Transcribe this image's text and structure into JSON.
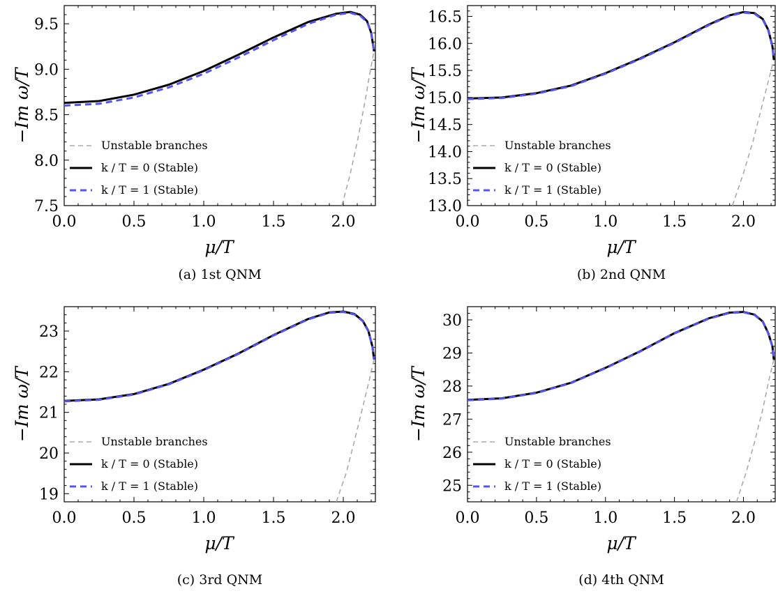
{
  "chart_data": [
    {
      "type": "line",
      "caption": "(a) 1st QNM",
      "xlabel": "μ/T",
      "ylabel": "−Im ω/T",
      "xlim": [
        0,
        2.23
      ],
      "ylim": [
        7.5,
        9.7
      ],
      "xticks": [
        0.0,
        0.5,
        1.0,
        1.5,
        2.0
      ],
      "xtick_labels": [
        "0.0",
        "0.5",
        "1.0",
        "1.5",
        "2.0"
      ],
      "yticks": [
        7.5,
        8.0,
        8.5,
        9.0,
        9.5
      ],
      "ytick_labels": [
        "7.5",
        "8.0",
        "8.5",
        "9.0",
        "9.5"
      ],
      "legend_position": "bottom-left",
      "series": [
        {
          "name": "Unstable branches",
          "color": "#aaaaaa",
          "style": "dashed",
          "x": [
            1.99,
            2.05,
            2.1,
            2.15,
            2.19,
            2.22
          ],
          "y": [
            7.5,
            7.85,
            8.2,
            8.6,
            8.95,
            9.2
          ]
        },
        {
          "name": "k / T = 0 (Stable)",
          "color": "#000000",
          "style": "solid",
          "x": [
            0.0,
            0.25,
            0.5,
            0.75,
            1.0,
            1.25,
            1.5,
            1.75,
            1.95,
            2.05,
            2.12,
            2.17,
            2.2,
            2.22
          ],
          "y": [
            8.63,
            8.65,
            8.72,
            8.83,
            8.98,
            9.16,
            9.35,
            9.52,
            9.61,
            9.63,
            9.6,
            9.53,
            9.4,
            9.2
          ]
        },
        {
          "name": "k / T = 1 (Stable)",
          "color": "#5555ee",
          "style": "dashed",
          "x": [
            0.0,
            0.25,
            0.5,
            0.75,
            1.0,
            1.25,
            1.5,
            1.75,
            1.95,
            2.05,
            2.12,
            2.17,
            2.2,
            2.22
          ],
          "y": [
            8.6,
            8.62,
            8.69,
            8.8,
            8.95,
            9.13,
            9.32,
            9.5,
            9.6,
            9.62,
            9.59,
            9.52,
            9.4,
            9.2
          ]
        }
      ],
      "legend": [
        {
          "label": "Unstable branches",
          "color": "#aaaaaa",
          "style": "dashed"
        },
        {
          "label": "k / T = 0 (Stable)",
          "color": "#000000",
          "style": "solid"
        },
        {
          "label": "k / T = 1 (Stable)",
          "color": "#5555ee",
          "style": "dashed"
        }
      ]
    },
    {
      "type": "line",
      "caption": "(b) 2nd QNM",
      "xlabel": "μ/T",
      "ylabel": "−Im ω/T",
      "xlim": [
        0,
        2.23
      ],
      "ylim": [
        13.0,
        16.7
      ],
      "xticks": [
        0.0,
        0.5,
        1.0,
        1.5,
        2.0
      ],
      "xtick_labels": [
        "0.0",
        "0.5",
        "1.0",
        "1.5",
        "2.0"
      ],
      "yticks": [
        13.0,
        13.5,
        14.0,
        14.5,
        15.0,
        15.5,
        16.0,
        16.5
      ],
      "ytick_labels": [
        "13.0",
        "13.5",
        "14.0",
        "14.5",
        "15.0",
        "15.5",
        "16.0",
        "16.5"
      ],
      "legend_position": "bottom-left",
      "series": [
        {
          "name": "Unstable branches",
          "color": "#aaaaaa",
          "style": "dashed",
          "x": [
            1.92,
            2.0,
            2.07,
            2.13,
            2.18,
            2.22
          ],
          "y": [
            13.0,
            13.6,
            14.2,
            14.8,
            15.3,
            15.7
          ]
        },
        {
          "name": "k / T = 0 (Stable)",
          "color": "#000000",
          "style": "solid",
          "x": [
            0.0,
            0.25,
            0.5,
            0.75,
            1.0,
            1.25,
            1.5,
            1.75,
            1.9,
            2.0,
            2.08,
            2.14,
            2.18,
            2.21,
            2.22
          ],
          "y": [
            14.98,
            15.0,
            15.08,
            15.22,
            15.45,
            15.72,
            16.02,
            16.35,
            16.52,
            16.58,
            16.56,
            16.45,
            16.25,
            15.95,
            15.7
          ]
        },
        {
          "name": "k / T = 1 (Stable)",
          "color": "#5555ee",
          "style": "dashed",
          "x": [
            0.0,
            0.25,
            0.5,
            0.75,
            1.0,
            1.25,
            1.5,
            1.75,
            1.9,
            2.0,
            2.08,
            2.14,
            2.18,
            2.21,
            2.22
          ],
          "y": [
            14.97,
            14.99,
            15.07,
            15.21,
            15.44,
            15.71,
            16.01,
            16.34,
            16.51,
            16.57,
            16.55,
            16.44,
            16.24,
            15.94,
            15.7
          ]
        }
      ],
      "legend": [
        {
          "label": "Unstable branches",
          "color": "#aaaaaa",
          "style": "dashed"
        },
        {
          "label": "k / T = 0 (Stable)",
          "color": "#000000",
          "style": "solid"
        },
        {
          "label": "k / T = 1 (Stable)",
          "color": "#5555ee",
          "style": "dashed"
        }
      ]
    },
    {
      "type": "line",
      "caption": "(c) 3rd QNM",
      "xlabel": "μ/T",
      "ylabel": "−Im ω/T",
      "xlim": [
        0,
        2.23
      ],
      "ylim": [
        18.8,
        23.6
      ],
      "xticks": [
        0.0,
        0.5,
        1.0,
        1.5,
        2.0
      ],
      "xtick_labels": [
        "0.0",
        "0.5",
        "1.0",
        "1.5",
        "2.0"
      ],
      "yticks": [
        19,
        20,
        21,
        22,
        23
      ],
      "ytick_labels": [
        "19",
        "20",
        "21",
        "22",
        "23"
      ],
      "legend_position": "bottom-left",
      "series": [
        {
          "name": "Unstable branches",
          "color": "#aaaaaa",
          "style": "dashed",
          "x": [
            1.95,
            2.02,
            2.08,
            2.13,
            2.18,
            2.22
          ],
          "y": [
            18.8,
            19.5,
            20.3,
            21.0,
            21.7,
            22.3
          ]
        },
        {
          "name": "k / T = 0 (Stable)",
          "color": "#000000",
          "style": "solid",
          "x": [
            0.0,
            0.25,
            0.5,
            0.75,
            1.0,
            1.25,
            1.5,
            1.75,
            1.9,
            2.0,
            2.08,
            2.14,
            2.18,
            2.21,
            2.22
          ],
          "y": [
            21.28,
            21.32,
            21.45,
            21.7,
            22.05,
            22.45,
            22.9,
            23.3,
            23.46,
            23.48,
            23.42,
            23.25,
            23.0,
            22.6,
            22.3
          ]
        },
        {
          "name": "k / T = 1 (Stable)",
          "color": "#5555ee",
          "style": "dashed",
          "x": [
            0.0,
            0.25,
            0.5,
            0.75,
            1.0,
            1.25,
            1.5,
            1.75,
            1.9,
            2.0,
            2.08,
            2.14,
            2.18,
            2.21,
            2.22
          ],
          "y": [
            21.27,
            21.31,
            21.44,
            21.69,
            22.04,
            22.44,
            22.89,
            23.29,
            23.45,
            23.47,
            23.41,
            23.24,
            22.99,
            22.59,
            22.3
          ]
        }
      ],
      "legend": [
        {
          "label": "Unstable branches",
          "color": "#aaaaaa",
          "style": "dashed"
        },
        {
          "label": "k / T = 0 (Stable)",
          "color": "#000000",
          "style": "solid"
        },
        {
          "label": "k / T = 1 (Stable)",
          "color": "#5555ee",
          "style": "dashed"
        }
      ]
    },
    {
      "type": "line",
      "caption": "(d) 4th QNM",
      "xlabel": "μ/T",
      "ylabel": "−Im ω/T",
      "xlim": [
        0,
        2.23
      ],
      "ylim": [
        24.5,
        30.4
      ],
      "xticks": [
        0.0,
        0.5,
        1.0,
        1.5,
        2.0
      ],
      "xtick_labels": [
        "0.0",
        "0.5",
        "1.0",
        "1.5",
        "2.0"
      ],
      "yticks": [
        25,
        26,
        27,
        28,
        29,
        30
      ],
      "ytick_labels": [
        "25",
        "26",
        "27",
        "28",
        "29",
        "30"
      ],
      "legend_position": "bottom-left",
      "series": [
        {
          "name": "Unstable branches",
          "color": "#aaaaaa",
          "style": "dashed",
          "x": [
            1.95,
            2.02,
            2.08,
            2.14,
            2.18,
            2.22
          ],
          "y": [
            24.5,
            25.4,
            26.3,
            27.3,
            28.1,
            28.8
          ]
        },
        {
          "name": "k / T = 0 (Stable)",
          "color": "#000000",
          "style": "solid",
          "x": [
            0.0,
            0.25,
            0.5,
            0.75,
            1.0,
            1.25,
            1.5,
            1.75,
            1.9,
            2.0,
            2.08,
            2.14,
            2.18,
            2.21,
            2.22
          ],
          "y": [
            27.58,
            27.63,
            27.8,
            28.1,
            28.55,
            29.05,
            29.6,
            30.05,
            30.22,
            30.24,
            30.16,
            29.95,
            29.6,
            29.2,
            28.8
          ]
        },
        {
          "name": "k / T = 1 (Stable)",
          "color": "#5555ee",
          "style": "dashed",
          "x": [
            0.0,
            0.25,
            0.5,
            0.75,
            1.0,
            1.25,
            1.5,
            1.75,
            1.9,
            2.0,
            2.08,
            2.14,
            2.18,
            2.21,
            2.22
          ],
          "y": [
            27.57,
            27.62,
            27.79,
            28.09,
            28.54,
            29.04,
            29.59,
            30.04,
            30.21,
            30.23,
            30.15,
            29.94,
            29.59,
            29.19,
            28.8
          ]
        }
      ],
      "legend": [
        {
          "label": "Unstable branches",
          "color": "#aaaaaa",
          "style": "dashed"
        },
        {
          "label": "k / T = 0 (Stable)",
          "color": "#000000",
          "style": "solid"
        },
        {
          "label": "k / T = 1 (Stable)",
          "color": "#5555ee",
          "style": "dashed"
        }
      ]
    }
  ]
}
